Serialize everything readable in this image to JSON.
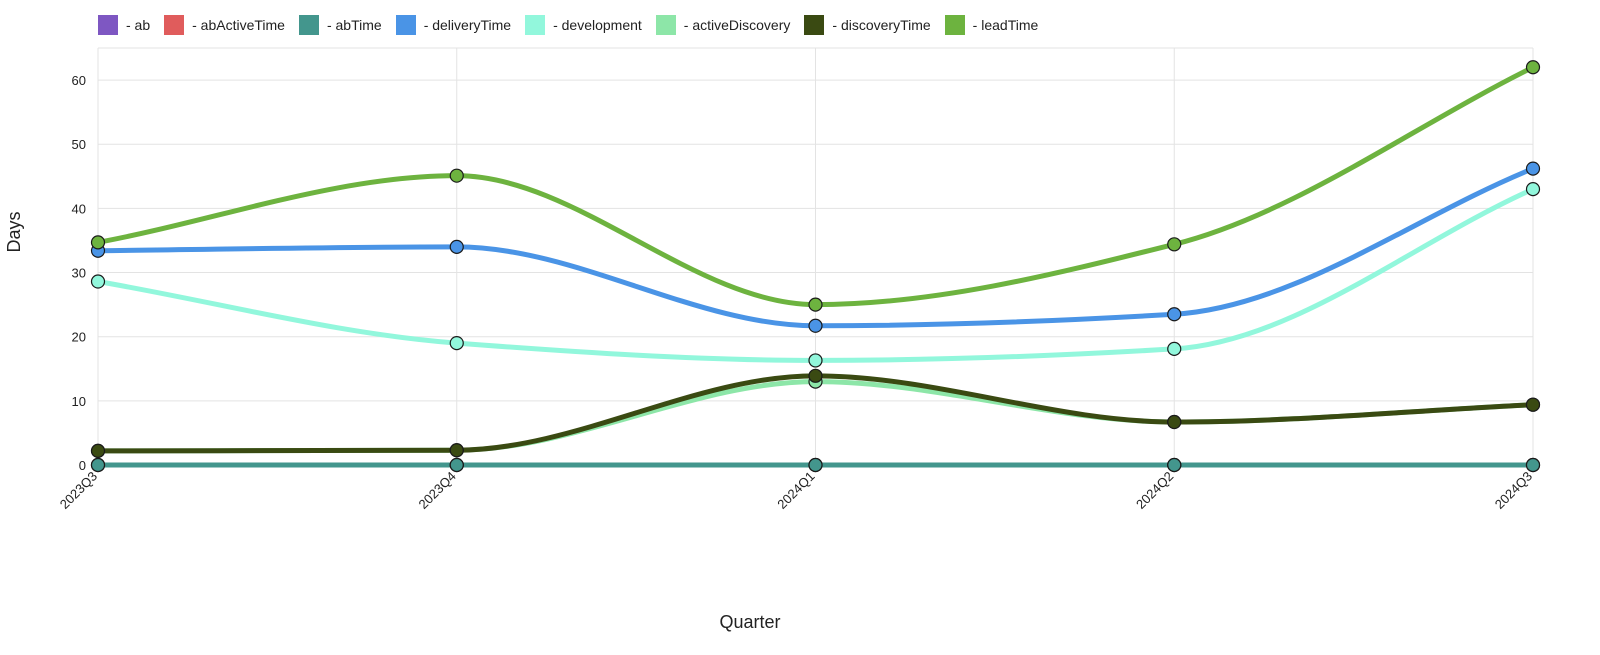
{
  "chart_data": {
    "type": "line",
    "xlabel": "Quarter",
    "ylabel": "Days",
    "categories": [
      "2023Q3",
      "2023Q4",
      "2024Q1",
      "2024Q2",
      "2024Q3"
    ],
    "ylim": [
      0,
      65
    ],
    "yticks": [
      0,
      10,
      20,
      30,
      40,
      50,
      60
    ],
    "grid": true,
    "legend_position": "top-left",
    "series": [
      {
        "name": "- ab",
        "color": "#7e57c2",
        "values": [
          0,
          0,
          0,
          0,
          0
        ]
      },
      {
        "name": "- abActiveTime",
        "color": "#e05c5c",
        "values": [
          0,
          0,
          0,
          0,
          0
        ]
      },
      {
        "name": "- abTime",
        "color": "#43968d",
        "values": [
          0,
          0,
          0,
          0,
          0
        ]
      },
      {
        "name": "- deliveryTime",
        "color": "#4a94e6",
        "values": [
          33.4,
          34,
          21.7,
          23.5,
          46.2
        ]
      },
      {
        "name": "- development",
        "color": "#92f7dc",
        "values": [
          28.6,
          19,
          16.3,
          18.1,
          43
        ]
      },
      {
        "name": "- activeDiscovery",
        "color": "#8de6a8",
        "values": [
          2.2,
          2.3,
          13,
          6.7,
          9.4
        ]
      },
      {
        "name": "- discoveryTime",
        "color": "#3a4a12",
        "values": [
          2.2,
          2.3,
          13.9,
          6.7,
          9.4
        ]
      },
      {
        "name": "- leadTime",
        "color": "#6db33f",
        "values": [
          34.7,
          45.1,
          25,
          34.4,
          62
        ]
      }
    ]
  }
}
